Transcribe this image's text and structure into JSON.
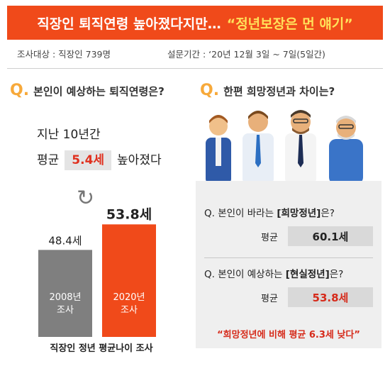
{
  "banner": {
    "main": "직장인 퇴직연령 높아졌다지만…",
    "highlight": "“정년보장은 먼 얘기”"
  },
  "info": {
    "subjects": "조사대상 : 직장인 739명",
    "period": "설문기간 : ‘20년 12월 3일 ~ 7일(5일간)"
  },
  "q1": {
    "mark": "Q.",
    "text": "본인이 예상하는 퇴직연령은?"
  },
  "q2": {
    "mark": "Q.",
    "text": "한편 희망정년과 차이는?"
  },
  "intro": {
    "line1": "지난 10년간",
    "prefix": "평균",
    "value": "5.4세",
    "suffix": "높아졌다"
  },
  "colors": {
    "orange": "#f04a1a",
    "gray": "#7f7f7f",
    "red_text": "#d62a1a"
  },
  "chart_data": {
    "type": "bar",
    "categories": [
      "2008년\n조사",
      "2020년\n조사"
    ],
    "values": [
      48.4,
      53.8
    ],
    "data_labels": [
      "48.4세",
      "53.8세"
    ],
    "title": "직장인 정년 평균나이 조사",
    "xlabel": "",
    "ylabel": "",
    "colors": [
      "#7f7f7f",
      "#f04a1a"
    ]
  },
  "panel": {
    "q_a_prefix": "Q. 본인이 바라는 ",
    "q_a_key": "[희망정년]",
    "q_a_suffix": "은?",
    "avg_label": "평균",
    "hope_value": "60.1세",
    "q_b_prefix": "Q. 본인이 예상하는 ",
    "q_b_key": "[현실정년]",
    "q_b_suffix": "은?",
    "real_value": "53.8세",
    "note": "“희망정년에 비해 평균 6.3세 낮다”"
  },
  "icons": [
    "cycle-arrow-icon",
    "people-illustration"
  ]
}
